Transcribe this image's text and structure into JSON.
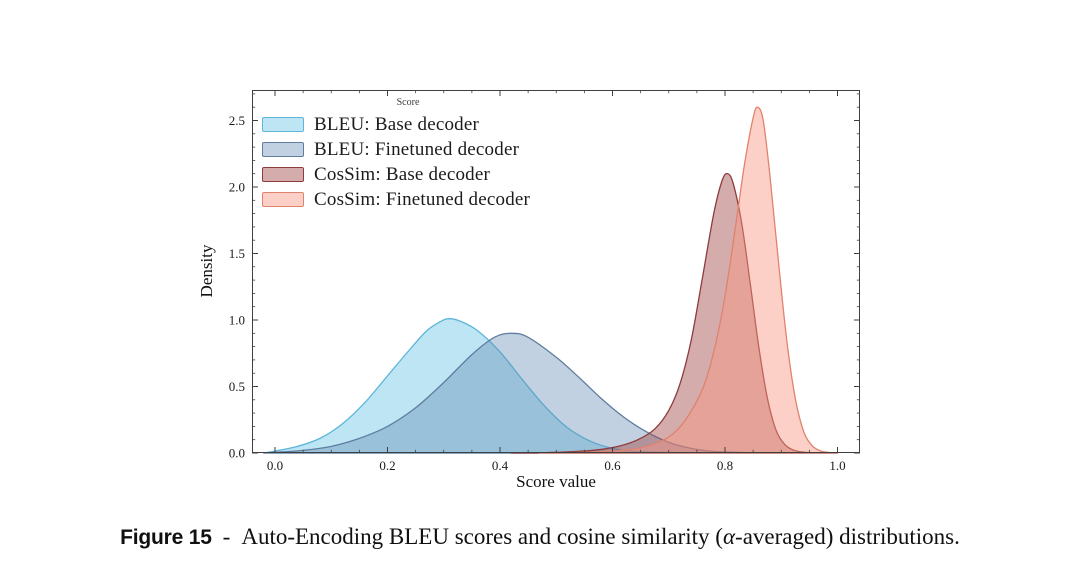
{
  "figure": {
    "caption_label": "Figure 15",
    "caption_separator": "-",
    "caption_text_pre": "Auto-Encoding BLEU scores and cosine similarity (",
    "caption_alpha": "α",
    "caption_text_post": "-averaged) distributions."
  },
  "chart_data": {
    "type": "area",
    "subtype": "kde-density",
    "title": "",
    "xlabel": "Score value",
    "ylabel": "Density",
    "xlim": [
      -0.041,
      1.04
    ],
    "ylim": [
      0,
      2.73
    ],
    "x_major_ticks": [
      0.0,
      0.2,
      0.4,
      0.6,
      0.8,
      1.0
    ],
    "x_minor_step": 0.05,
    "y_major_ticks": [
      0.0,
      0.5,
      1.0,
      1.5,
      2.0,
      2.5
    ],
    "y_minor_step": 0.1,
    "grid": false,
    "tick_direction": "in",
    "legend": {
      "title": "Score",
      "position": "upper-left",
      "frame": false
    },
    "series": [
      {
        "name": "BLEU: Base decoder",
        "peak_x": 0.31,
        "peak_density": 1.01,
        "stroke": "#5bb6da",
        "fill": "rgba(137,208,235,0.55)",
        "x": [
          -0.02,
          0.0,
          0.04,
          0.08,
          0.12,
          0.16,
          0.2,
          0.24,
          0.27,
          0.295,
          0.31,
          0.33,
          0.36,
          0.4,
          0.44,
          0.48,
          0.52,
          0.56,
          0.6,
          0.64,
          0.7,
          0.78,
          0.9,
          1.0
        ],
        "y": [
          0,
          0.015,
          0.05,
          0.11,
          0.22,
          0.38,
          0.58,
          0.78,
          0.92,
          0.99,
          1.01,
          0.99,
          0.92,
          0.76,
          0.55,
          0.35,
          0.19,
          0.09,
          0.035,
          0.012,
          0.004,
          0.001,
          0.0005,
          0
        ]
      },
      {
        "name": "BLEU: Finetuned decoder",
        "peak_x": 0.42,
        "peak_density": 0.9,
        "stroke": "#5f7d9e",
        "fill": "rgba(100,140,180,0.40)",
        "x": [
          -0.02,
          0.0,
          0.05,
          0.1,
          0.15,
          0.2,
          0.25,
          0.3,
          0.35,
          0.39,
          0.42,
          0.45,
          0.5,
          0.54,
          0.58,
          0.62,
          0.66,
          0.7,
          0.74,
          0.78,
          0.83,
          0.9,
          1.0
        ],
        "y": [
          0,
          0.005,
          0.02,
          0.05,
          0.11,
          0.2,
          0.34,
          0.53,
          0.74,
          0.87,
          0.9,
          0.87,
          0.72,
          0.57,
          0.41,
          0.27,
          0.16,
          0.08,
          0.035,
          0.012,
          0.004,
          0.001,
          0
        ]
      },
      {
        "name": "CosSim: Base decoder",
        "peak_x": 0.8,
        "peak_density": 2.1,
        "stroke": "#8e3b3b",
        "fill": "rgba(160,70,70,0.45)",
        "x": [
          0.42,
          0.47,
          0.52,
          0.57,
          0.61,
          0.645,
          0.675,
          0.7,
          0.72,
          0.74,
          0.76,
          0.78,
          0.795,
          0.805,
          0.815,
          0.83,
          0.845,
          0.86,
          0.875,
          0.89,
          0.905,
          0.92,
          0.94,
          0.97,
          1.0
        ],
        "y": [
          0,
          0.002,
          0.008,
          0.022,
          0.05,
          0.1,
          0.18,
          0.32,
          0.52,
          0.85,
          1.32,
          1.8,
          2.05,
          2.1,
          2.02,
          1.72,
          1.27,
          0.8,
          0.42,
          0.18,
          0.07,
          0.025,
          0.006,
          0.001,
          0
        ]
      },
      {
        "name": "CosSim: Finetuned decoder",
        "peak_x": 0.855,
        "peak_density": 2.6,
        "stroke": "#e0826e",
        "fill": "rgba(248,150,130,0.45)",
        "x": [
          0.47,
          0.52,
          0.57,
          0.62,
          0.66,
          0.7,
          0.73,
          0.76,
          0.78,
          0.8,
          0.82,
          0.835,
          0.85,
          0.858,
          0.868,
          0.88,
          0.895,
          0.91,
          0.925,
          0.94,
          0.955,
          0.97,
          0.985,
          1.0
        ],
        "y": [
          0,
          0.002,
          0.008,
          0.022,
          0.05,
          0.12,
          0.25,
          0.48,
          0.76,
          1.18,
          1.74,
          2.18,
          2.52,
          2.6,
          2.5,
          2.08,
          1.44,
          0.84,
          0.41,
          0.16,
          0.055,
          0.015,
          0.004,
          0.001
        ]
      }
    ]
  }
}
